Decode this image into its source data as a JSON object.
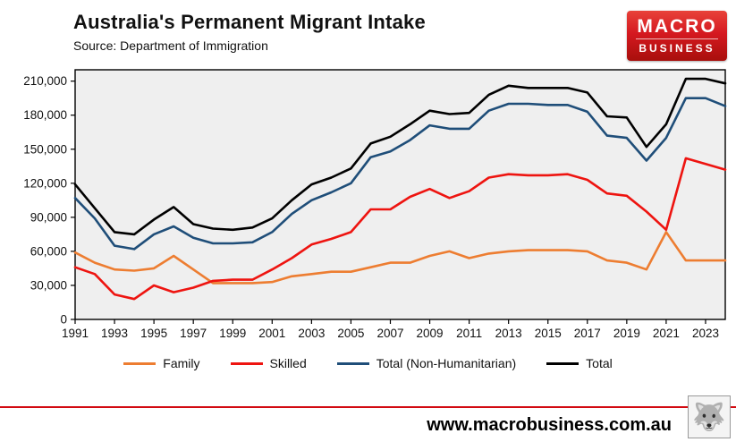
{
  "header": {
    "title": "Australia's Permanent Migrant Intake",
    "subtitle": "Source: Department of Immigration",
    "logo": {
      "line1": "MACRO",
      "line2": "BUSINESS",
      "bg_color": "#d51920"
    }
  },
  "chart_data": {
    "type": "line",
    "title": "Australia's Permanent Migrant Intake",
    "xlabel": "",
    "ylabel": "",
    "x": [
      1991,
      1992,
      1993,
      1994,
      1995,
      1996,
      1997,
      1998,
      1999,
      2000,
      2001,
      2002,
      2003,
      2004,
      2005,
      2006,
      2007,
      2008,
      2009,
      2010,
      2011,
      2012,
      2013,
      2014,
      2015,
      2016,
      2017,
      2018,
      2019,
      2020,
      2021,
      2022,
      2023,
      2024
    ],
    "series": [
      {
        "name": "Family",
        "color": "#ed7d31",
        "values": [
          59000,
          50000,
          44000,
          43000,
          45000,
          56000,
          44000,
          32000,
          32000,
          32000,
          33000,
          38000,
          40000,
          42000,
          42000,
          46000,
          50000,
          50000,
          56000,
          60000,
          54000,
          58000,
          60000,
          61000,
          61000,
          61000,
          60000,
          52000,
          50000,
          44000,
          77000,
          52000,
          52000,
          52000
        ]
      },
      {
        "name": "Skilled",
        "color": "#ee1410",
        "values": [
          46000,
          40000,
          22000,
          18000,
          30000,
          24000,
          28000,
          34000,
          35000,
          35000,
          44000,
          54000,
          66000,
          71000,
          77000,
          97000,
          97000,
          108000,
          115000,
          107000,
          113000,
          125000,
          128000,
          127000,
          127000,
          128000,
          123000,
          111000,
          109000,
          95000,
          79000,
          142000,
          137000,
          132000
        ]
      },
      {
        "name": "Total (Non-Humanitarian)",
        "color": "#1f4e79",
        "values": [
          107000,
          89000,
          65000,
          62000,
          75000,
          82000,
          72000,
          67000,
          67000,
          68000,
          77000,
          93000,
          105000,
          112000,
          120000,
          143000,
          148000,
          158000,
          171000,
          168000,
          168000,
          184000,
          190000,
          190000,
          189000,
          189000,
          183000,
          162000,
          160000,
          140000,
          160000,
          195000,
          195000,
          188000
        ]
      },
      {
        "name": "Total",
        "color": "#000000",
        "values": [
          119000,
          98000,
          77000,
          75000,
          88000,
          99000,
          84000,
          80000,
          79000,
          81000,
          89000,
          105000,
          119000,
          125000,
          133000,
          155000,
          161000,
          172000,
          184000,
          181000,
          182000,
          198000,
          206000,
          204000,
          204000,
          204000,
          200000,
          179000,
          178000,
          152000,
          172000,
          212000,
          212000,
          208000
        ]
      }
    ],
    "ylim": [
      0,
      220000
    ],
    "yticks": [
      0,
      30000,
      60000,
      90000,
      120000,
      150000,
      180000,
      210000
    ],
    "xticks": [
      1991,
      1993,
      1995,
      1997,
      1999,
      2001,
      2003,
      2005,
      2007,
      2009,
      2011,
      2013,
      2015,
      2017,
      2019,
      2021,
      2023
    ],
    "grid": false,
    "plot_bg": "#efefef",
    "legend_position": "bottom"
  },
  "footer": {
    "website": "www.macrobusiness.com.au",
    "divider_color": "#d20a11",
    "wolf_icon": "wolf-logo"
  }
}
